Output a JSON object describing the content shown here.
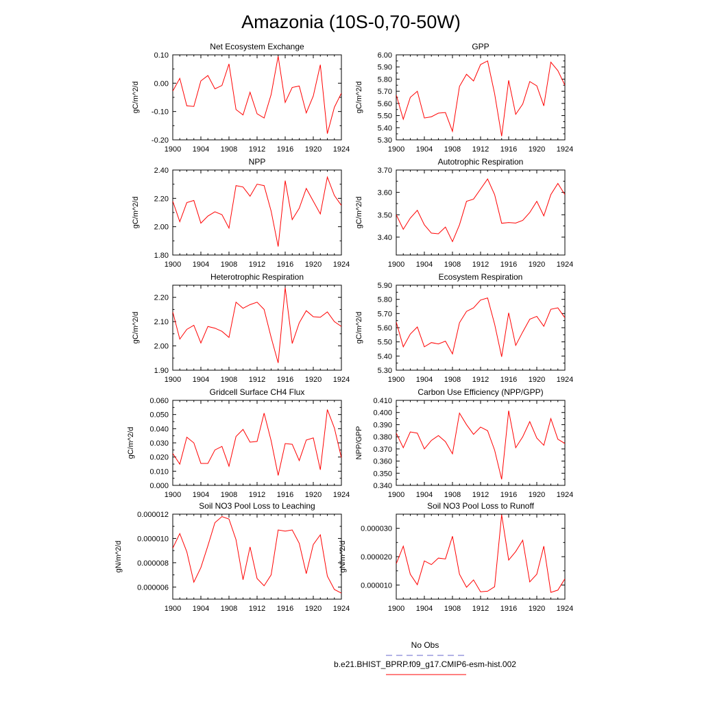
{
  "page": {
    "title": "Amazonia (10S-0,70-50W)"
  },
  "legend": {
    "entries": [
      {
        "label": "No Obs",
        "color": "#6666cc",
        "style": "dashed"
      },
      {
        "label": "b.e21.BHIST_BPRP.f09_g17.CMIP6-esm-hist.002",
        "color": "#ff0000",
        "style": "solid"
      }
    ]
  },
  "colors": {
    "series": "#ff0000",
    "no_obs": "#6666cc"
  },
  "chart_data": [
    {
      "type": "line",
      "title": "Net Ecosystem Exchange",
      "ylabel": "gC/m^2/d",
      "xlim": [
        1900,
        1924
      ],
      "ylim": [
        -0.2,
        0.1
      ],
      "xticks": [
        1900,
        1904,
        1908,
        1912,
        1916,
        1920,
        1924
      ],
      "yticks": [
        -0.2,
        -0.1,
        0.0,
        0.1
      ],
      "ytick_labels": [
        "-0.20",
        "-0.10",
        "0.00",
        "0.10"
      ],
      "x": [
        1900,
        1901,
        1902,
        1903,
        1904,
        1905,
        1906,
        1907,
        1908,
        1909,
        1910,
        1911,
        1912,
        1913,
        1914,
        1915,
        1916,
        1917,
        1918,
        1919,
        1920,
        1921,
        1922,
        1923,
        1924
      ],
      "values": [
        -0.028,
        0.017,
        -0.08,
        -0.082,
        0.008,
        0.027,
        -0.02,
        -0.008,
        0.068,
        -0.093,
        -0.112,
        -0.032,
        -0.108,
        -0.123,
        -0.04,
        0.095,
        -0.068,
        -0.015,
        -0.01,
        -0.105,
        -0.045,
        0.065,
        -0.178,
        -0.085,
        -0.035
      ]
    },
    {
      "type": "line",
      "title": "GPP",
      "ylabel": "gC/m^2/d",
      "xlim": [
        1900,
        1924
      ],
      "ylim": [
        5.3,
        6.0
      ],
      "xticks": [
        1900,
        1904,
        1908,
        1912,
        1916,
        1920,
        1924
      ],
      "yticks": [
        5.3,
        5.4,
        5.5,
        5.6,
        5.7,
        5.8,
        5.9,
        6.0
      ],
      "ytick_labels": [
        "5.30",
        "5.40",
        "5.50",
        "5.60",
        "5.70",
        "5.80",
        "5.90",
        "6.00"
      ],
      "x": [
        1900,
        1901,
        1902,
        1903,
        1904,
        1905,
        1906,
        1907,
        1908,
        1909,
        1910,
        1911,
        1912,
        1913,
        1914,
        1915,
        1916,
        1917,
        1918,
        1919,
        1920,
        1921,
        1922,
        1923,
        1924
      ],
      "values": [
        5.67,
        5.47,
        5.65,
        5.7,
        5.48,
        5.49,
        5.52,
        5.525,
        5.37,
        5.74,
        5.84,
        5.785,
        5.92,
        5.95,
        5.68,
        5.33,
        5.79,
        5.51,
        5.595,
        5.78,
        5.745,
        5.58,
        5.94,
        5.87,
        5.75
      ]
    },
    {
      "type": "line",
      "title": "NPP",
      "ylabel": "gC/m^2/d",
      "xlim": [
        1900,
        1924
      ],
      "ylim": [
        1.8,
        2.4
      ],
      "xticks": [
        1900,
        1904,
        1908,
        1912,
        1916,
        1920,
        1924
      ],
      "yticks": [
        1.8,
        2.0,
        2.2,
        2.4
      ],
      "ytick_labels": [
        "1.80",
        "2.00",
        "2.20",
        "2.40"
      ],
      "x": [
        1900,
        1901,
        1902,
        1903,
        1904,
        1905,
        1906,
        1907,
        1908,
        1909,
        1910,
        1911,
        1912,
        1913,
        1914,
        1915,
        1916,
        1917,
        1918,
        1919,
        1920,
        1921,
        1922,
        1923,
        1924
      ],
      "values": [
        2.18,
        2.035,
        2.17,
        2.185,
        2.025,
        2.075,
        2.105,
        2.085,
        1.99,
        2.29,
        2.28,
        2.215,
        2.3,
        2.29,
        2.11,
        1.86,
        2.325,
        2.05,
        2.13,
        2.27,
        2.18,
        2.09,
        2.35,
        2.22,
        2.15
      ]
    },
    {
      "type": "line",
      "title": "Autotrophic Respiration",
      "ylabel": "gC/m^2/d",
      "xlim": [
        1900,
        1924
      ],
      "ylim": [
        3.32,
        3.7
      ],
      "xticks": [
        1900,
        1904,
        1908,
        1912,
        1916,
        1920,
        1924
      ],
      "yticks": [
        3.4,
        3.5,
        3.6,
        3.7
      ],
      "ytick_labels": [
        "3.40",
        "3.50",
        "3.60",
        "3.70"
      ],
      "x": [
        1900,
        1901,
        1902,
        1903,
        1904,
        1905,
        1906,
        1907,
        1908,
        1909,
        1910,
        1911,
        1912,
        1913,
        1914,
        1915,
        1916,
        1917,
        1918,
        1919,
        1920,
        1921,
        1922,
        1923,
        1924
      ],
      "values": [
        3.5,
        3.435,
        3.485,
        3.52,
        3.455,
        3.418,
        3.415,
        3.445,
        3.38,
        3.455,
        3.56,
        3.57,
        3.615,
        3.66,
        3.59,
        3.462,
        3.465,
        3.463,
        3.475,
        3.51,
        3.56,
        3.495,
        3.59,
        3.64,
        3.59
      ]
    },
    {
      "type": "line",
      "title": "Heterotrophic Respiration",
      "ylabel": "gC/m^2/d",
      "xlim": [
        1900,
        1924
      ],
      "ylim": [
        1.9,
        2.25
      ],
      "xticks": [
        1900,
        1904,
        1908,
        1912,
        1916,
        1920,
        1924
      ],
      "yticks": [
        1.9,
        2.0,
        2.1,
        2.2
      ],
      "ytick_labels": [
        "1.90",
        "2.00",
        "2.10",
        "2.20"
      ],
      "x": [
        1900,
        1901,
        1902,
        1903,
        1904,
        1905,
        1906,
        1907,
        1908,
        1909,
        1910,
        1911,
        1912,
        1913,
        1914,
        1915,
        1916,
        1917,
        1918,
        1919,
        1920,
        1921,
        1922,
        1923,
        1924
      ],
      "values": [
        2.14,
        2.028,
        2.068,
        2.085,
        2.012,
        2.08,
        2.073,
        2.06,
        2.035,
        2.18,
        2.155,
        2.17,
        2.18,
        2.15,
        2.035,
        1.93,
        2.24,
        2.01,
        2.095,
        2.145,
        2.12,
        2.118,
        2.14,
        2.1,
        2.08
      ]
    },
    {
      "type": "line",
      "title": "Ecosystem Respiration",
      "ylabel": "gC/m^2/d",
      "xlim": [
        1900,
        1924
      ],
      "ylim": [
        5.3,
        5.9
      ],
      "xticks": [
        1900,
        1904,
        1908,
        1912,
        1916,
        1920,
        1924
      ],
      "yticks": [
        5.3,
        5.4,
        5.5,
        5.6,
        5.7,
        5.8,
        5.9
      ],
      "ytick_labels": [
        "5.30",
        "5.40",
        "5.50",
        "5.60",
        "5.70",
        "5.80",
        "5.90"
      ],
      "x": [
        1900,
        1901,
        1902,
        1903,
        1904,
        1905,
        1906,
        1907,
        1908,
        1909,
        1910,
        1911,
        1912,
        1913,
        1914,
        1915,
        1916,
        1917,
        1918,
        1919,
        1920,
        1921,
        1922,
        1923,
        1924
      ],
      "values": [
        5.64,
        5.465,
        5.555,
        5.605,
        5.465,
        5.495,
        5.485,
        5.505,
        5.415,
        5.635,
        5.715,
        5.74,
        5.795,
        5.81,
        5.625,
        5.395,
        5.705,
        5.475,
        5.57,
        5.66,
        5.68,
        5.61,
        5.73,
        5.74,
        5.67
      ]
    },
    {
      "type": "line",
      "title": "Gridcell Surface CH4 Flux",
      "ylabel": "gC/m^2/d",
      "xlim": [
        1900,
        1924
      ],
      "ylim": [
        0.0,
        0.06
      ],
      "xticks": [
        1900,
        1904,
        1908,
        1912,
        1916,
        1920,
        1924
      ],
      "yticks": [
        0.0,
        0.01,
        0.02,
        0.03,
        0.04,
        0.05,
        0.06
      ],
      "ytick_labels": [
        "0.000",
        "0.010",
        "0.020",
        "0.030",
        "0.040",
        "0.050",
        "0.060"
      ],
      "x": [
        1900,
        1901,
        1902,
        1903,
        1904,
        1905,
        1906,
        1907,
        1908,
        1909,
        1910,
        1911,
        1912,
        1913,
        1914,
        1915,
        1916,
        1917,
        1918,
        1919,
        1920,
        1921,
        1922,
        1923,
        1924
      ],
      "values": [
        0.0225,
        0.015,
        0.034,
        0.03,
        0.0155,
        0.0155,
        0.025,
        0.0275,
        0.0135,
        0.0345,
        0.0395,
        0.0305,
        0.031,
        0.051,
        0.0315,
        0.007,
        0.0295,
        0.029,
        0.0175,
        0.032,
        0.0335,
        0.011,
        0.0535,
        0.0405,
        0.0195
      ]
    },
    {
      "type": "line",
      "title": "Carbon Use Efficiency (NPP/GPP)",
      "ylabel": "NPP/GPP",
      "xlim": [
        1900,
        1924
      ],
      "ylim": [
        0.34,
        0.41
      ],
      "xticks": [
        1900,
        1904,
        1908,
        1912,
        1916,
        1920,
        1924
      ],
      "yticks": [
        0.34,
        0.35,
        0.36,
        0.37,
        0.38,
        0.39,
        0.4,
        0.41
      ],
      "ytick_labels": [
        "0.340",
        "0.350",
        "0.360",
        "0.370",
        "0.380",
        "0.390",
        "0.400",
        "0.410"
      ],
      "x": [
        1900,
        1901,
        1902,
        1903,
        1904,
        1905,
        1906,
        1907,
        1908,
        1909,
        1910,
        1911,
        1912,
        1913,
        1914,
        1915,
        1916,
        1917,
        1918,
        1919,
        1920,
        1921,
        1922,
        1923,
        1924
      ],
      "values": [
        0.383,
        0.371,
        0.384,
        0.383,
        0.37,
        0.377,
        0.381,
        0.376,
        0.366,
        0.3995,
        0.39,
        0.382,
        0.388,
        0.385,
        0.369,
        0.345,
        0.4015,
        0.371,
        0.38,
        0.3925,
        0.379,
        0.373,
        0.395,
        0.378,
        0.3745
      ]
    },
    {
      "type": "line",
      "title": "Soil NO3 Pool Loss to Leaching",
      "ylabel": "gN/m^2/d",
      "xlim": [
        1900,
        1924
      ],
      "ylim": [
        5e-06,
        1.2e-05
      ],
      "xticks": [
        1900,
        1904,
        1908,
        1912,
        1916,
        1920,
        1924
      ],
      "yticks": [
        6e-06,
        8e-06,
        1e-05,
        1.2e-05
      ],
      "ytick_labels": [
        "0.000006",
        "0.000008",
        "0.000010",
        "0.000012"
      ],
      "x": [
        1900,
        1901,
        1902,
        1903,
        1904,
        1905,
        1906,
        1907,
        1908,
        1909,
        1910,
        1911,
        1912,
        1913,
        1914,
        1915,
        1916,
        1917,
        1918,
        1919,
        1920,
        1921,
        1922,
        1923,
        1924
      ],
      "values": [
        9.2e-06,
        1.04e-05,
        8.9e-06,
        6.4e-06,
        7.6e-06,
        9.4e-06,
        1.13e-05,
        1.18e-05,
        1.16e-05,
        9.9e-06,
        6.6e-06,
        9.3e-06,
        6.7e-06,
        6.1e-06,
        7e-06,
        1.07e-05,
        1.06e-05,
        1.07e-05,
        9.6e-06,
        7.1e-06,
        9.5e-06,
        1.03e-05,
        6.9e-06,
        5.8e-06,
        5.5e-06
      ]
    },
    {
      "type": "line",
      "title": "Soil NO3 Pool Loss to Runoff",
      "ylabel": "gN/m^2/d",
      "xlim": [
        1900,
        1924
      ],
      "ylim": [
        5e-06,
        3.5e-05
      ],
      "xticks": [
        1900,
        1904,
        1908,
        1912,
        1916,
        1920,
        1924
      ],
      "yticks": [
        1e-05,
        2e-05,
        3e-05
      ],
      "ytick_labels": [
        "0.000010",
        "0.000020",
        "0.000030"
      ],
      "x": [
        1900,
        1901,
        1902,
        1903,
        1904,
        1905,
        1906,
        1907,
        1908,
        1909,
        1910,
        1911,
        1912,
        1913,
        1914,
        1915,
        1916,
        1917,
        1918,
        1919,
        1920,
        1921,
        1922,
        1923,
        1924
      ],
      "values": [
        1.75e-05,
        2.37e-05,
        1.38e-05,
        1.01e-05,
        1.85e-05,
        1.72e-05,
        1.95e-05,
        1.92e-05,
        2.72e-05,
        1.38e-05,
        9.2e-06,
        1.18e-05,
        7.6e-06,
        7.8e-06,
        9.4e-06,
        3.48e-05,
        1.88e-05,
        2.18e-05,
        2.58e-05,
        1.11e-05,
        1.38e-05,
        2.37e-05,
        7.4e-06,
        8.2e-06,
        1.22e-05
      ]
    }
  ]
}
